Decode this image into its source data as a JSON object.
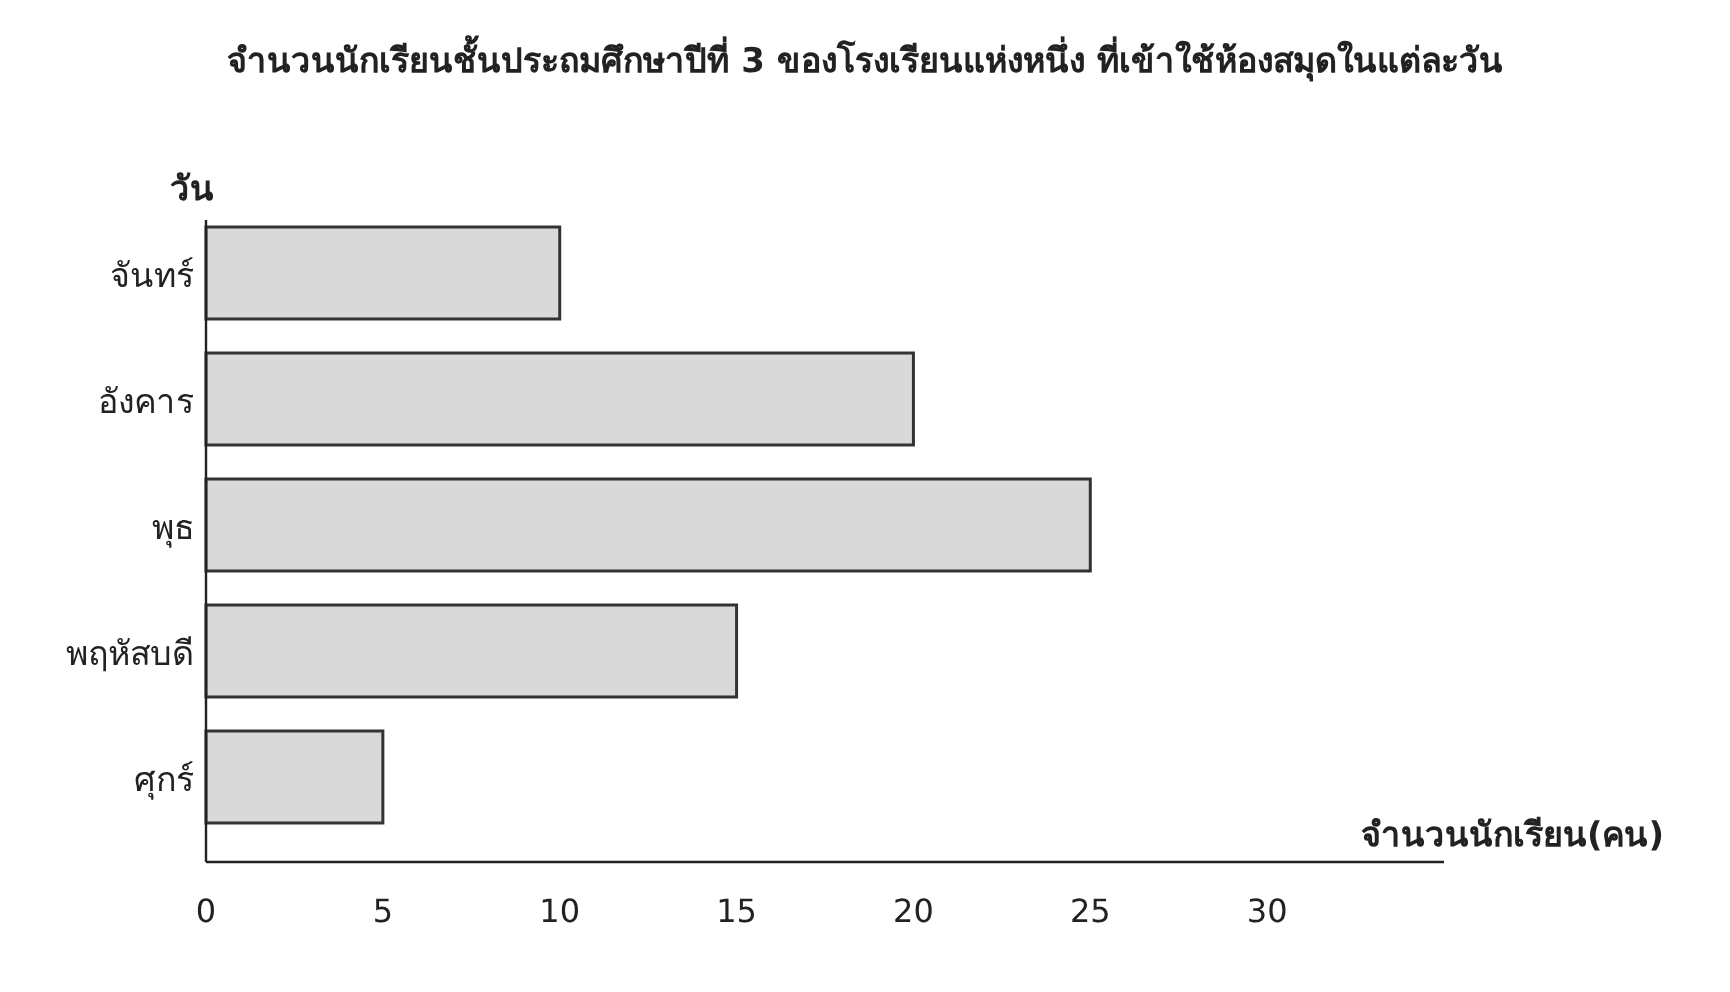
{
  "chart_data": {
    "type": "bar",
    "orientation": "horizontal",
    "title": "จำนวนนักเรียนชั้นประถมศึกษาปีที่ 3 ของโรงเรียนแห่งหนึ่ง ที่เข้าใช้ห้องสมุดในแต่ละวัน",
    "xlabel": "จำนวนนักเรียน(คน)",
    "ylabel": "วัน",
    "categories": [
      "จันทร์",
      "อังคาร",
      "พุธ",
      "พฤหัสบดี",
      "ศุกร์"
    ],
    "values": [
      10,
      20,
      25,
      15,
      5
    ],
    "color": "#d9d9d9",
    "xlim": [
      0,
      35
    ],
    "xticks": [
      0,
      5,
      10,
      15,
      20,
      25,
      30
    ],
    "grid": false
  }
}
